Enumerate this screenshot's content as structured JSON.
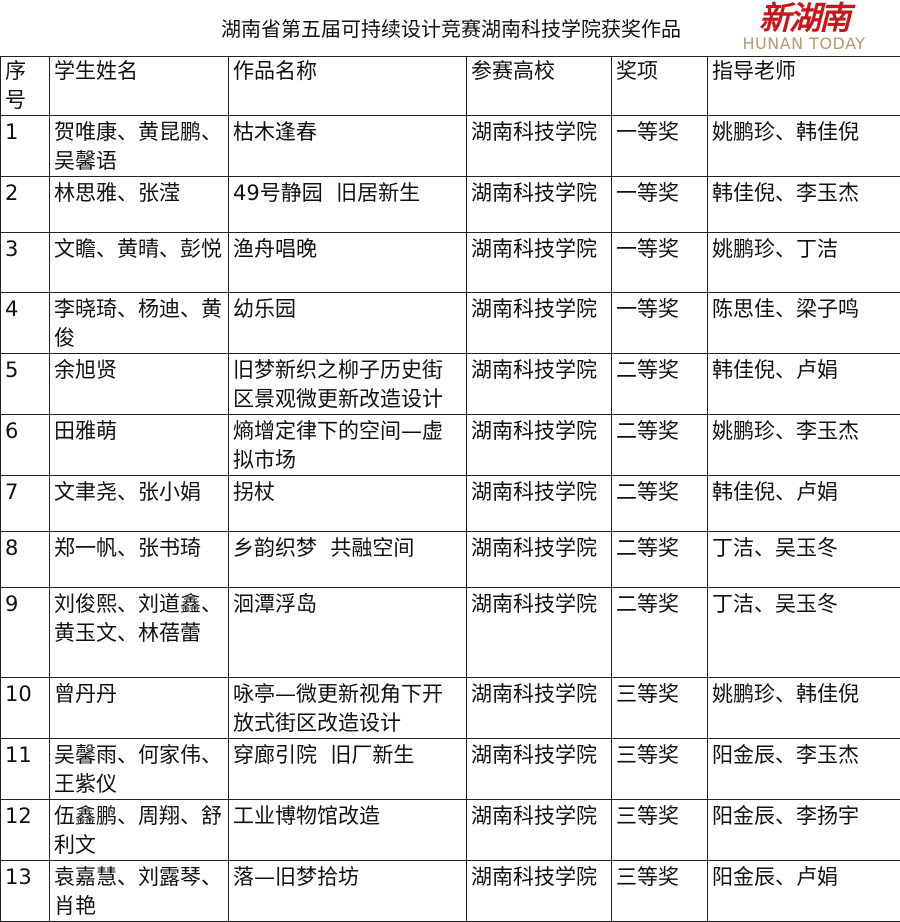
{
  "title": "湖南省第五届可持续设计竞赛湖南科技学院获奖作品",
  "headers": [
    "序号",
    "学生姓名",
    "作品名称",
    "参赛高校",
    "奖项",
    "指导老师"
  ],
  "rows": [
    [
      "1",
      "贺唯康、黄昆鹏、吴馨语",
      "枯木逢春",
      "湖南科技学院",
      "一等奖",
      "姚鹏珍、韩佳倪"
    ],
    [
      "2",
      "林思雅、张滢",
      "49号静园  旧居新生",
      "湖南科技学院",
      "一等奖",
      "韩佳倪、李玉杰"
    ],
    [
      "3",
      "文瞻、黄晴、彭悦",
      "渔舟唱晚",
      "湖南科技学院",
      "一等奖",
      "姚鹏珍、丁洁"
    ],
    [
      "4",
      "李晓琦、杨迪、黄俊",
      "幼乐园",
      "湖南科技学院",
      "一等奖",
      "陈思佳、梁子鸣"
    ],
    [
      "5",
      "余旭贤",
      "旧梦新织之柳子历史街区景观微更新改造设计",
      "湖南科技学院",
      "二等奖",
      "韩佳倪、卢娟"
    ],
    [
      "6",
      "田雅萌",
      "熵增定律下的空间—虚拟市场",
      "湖南科技学院",
      "二等奖",
      "姚鹏珍、李玉杰"
    ],
    [
      "7",
      "文聿尧、张小娟",
      "拐杖",
      "湖南科技学院",
      "二等奖",
      "韩佳倪、卢娟"
    ],
    [
      "8",
      "郑一帆、张书琦",
      "乡韵织梦  共融空间",
      "湖南科技学院",
      "二等奖",
      "丁洁、吴玉冬"
    ],
    [
      "9",
      "刘俊熙、刘道鑫、黄玉文、林蓓蕾",
      "洄潭浮岛",
      "湖南科技学院",
      "二等奖",
      "丁洁、吴玉冬"
    ],
    [
      "10",
      "曾丹丹",
      "咏亭—微更新视角下开放式街区改造设计",
      "湖南科技学院",
      "三等奖",
      "姚鹏珍、韩佳倪"
    ],
    [
      "11",
      "吴馨雨、何家伟、王紫仪",
      "穿廊引院  旧厂新生",
      "湖南科技学院",
      "三等奖",
      "阳金辰、李玉杰"
    ],
    [
      "12",
      "伍鑫鹏、周翔、舒利文",
      "工业博物馆改造",
      "湖南科技学院",
      "三等奖",
      "阳金辰、李扬宇"
    ],
    [
      "13",
      "袁嘉慧、刘露琴、肖艳",
      "落—旧梦拾坊",
      "湖南科技学院",
      "三等奖",
      "阳金辰、卢娟"
    ]
  ],
  "watermark": {
    "logo": "新湖南",
    "subtitle": "HUNAN TODAY",
    "color": "#c8161d"
  }
}
